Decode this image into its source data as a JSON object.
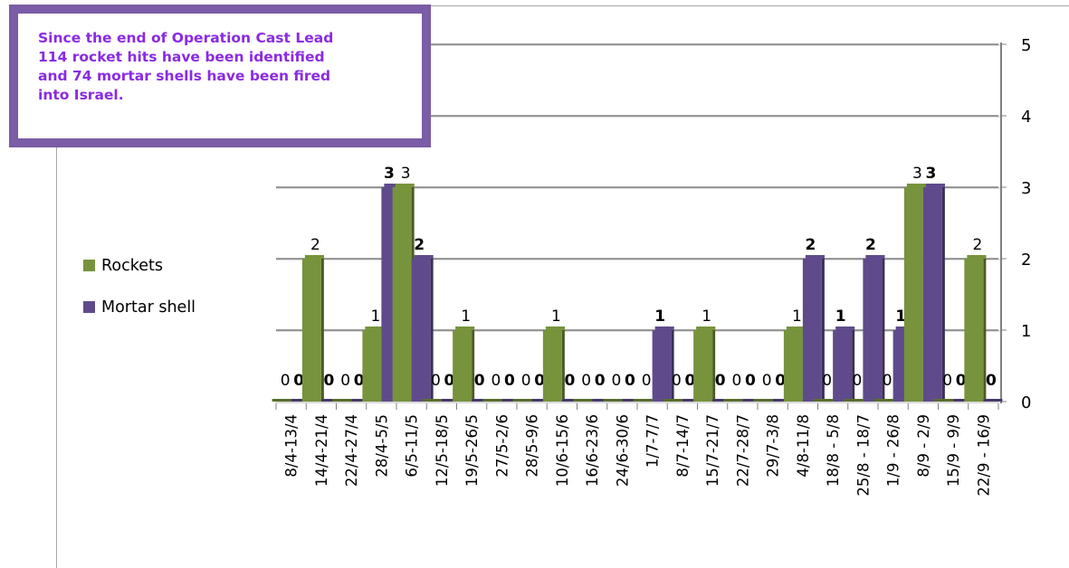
{
  "note": {
    "lines": [
      "Since the end of Operation Cast Lead",
      "114 rocket hits have been identified",
      "and 74 mortar shells have been fired",
      "into Israel."
    ]
  },
  "legend": [
    {
      "label": "Rockets",
      "color": "#77933c"
    },
    {
      "label": "Mortar shell",
      "color": "#5f4b8b"
    }
  ],
  "chart_data": {
    "type": "bar",
    "title": "",
    "xlabel": "",
    "ylabel": "",
    "ylim": [
      0,
      5
    ],
    "yticks": [
      "0",
      "1",
      "2",
      "3",
      "4",
      "5"
    ],
    "y_axis_side": "right",
    "grid": true,
    "legend_position": "left",
    "categories": [
      "8/4-13/4",
      "14/4-21/4",
      "22/4-27/4",
      "28/4-5/5",
      "6/5-11/5",
      "12/5-18/5",
      "19/5-26/5",
      "27/5-2/6",
      "28/5-9/6",
      "10/6-15/6",
      "16/6-23/6",
      "24/6-30/6",
      "1/7-7/7",
      "8/7-14/7",
      "15/7-21/7",
      "22/7-28/7",
      "29/7-3/8",
      "4/8-11/8",
      "18/8 - 5/8",
      "25/8 - 18/7",
      "1/9 - 26/8",
      "8/9 - 2/9",
      "15/9 - 9/9",
      "22/9 - 16/9"
    ],
    "series": [
      {
        "name": "Rockets",
        "color": "#77933c",
        "values": [
          0,
          2,
          0,
          1,
          3,
          0,
          1,
          0,
          0,
          1,
          0,
          0,
          0,
          0,
          1,
          0,
          0,
          1,
          0,
          0,
          0,
          3,
          0,
          2
        ]
      },
      {
        "name": "Mortar shell",
        "color": "#5f4b8b",
        "values": [
          0,
          0,
          0,
          3,
          2,
          0,
          0,
          0,
          0,
          0,
          0,
          0,
          1,
          0,
          0,
          0,
          0,
          2,
          1,
          2,
          1,
          3,
          0,
          0
        ]
      }
    ]
  }
}
